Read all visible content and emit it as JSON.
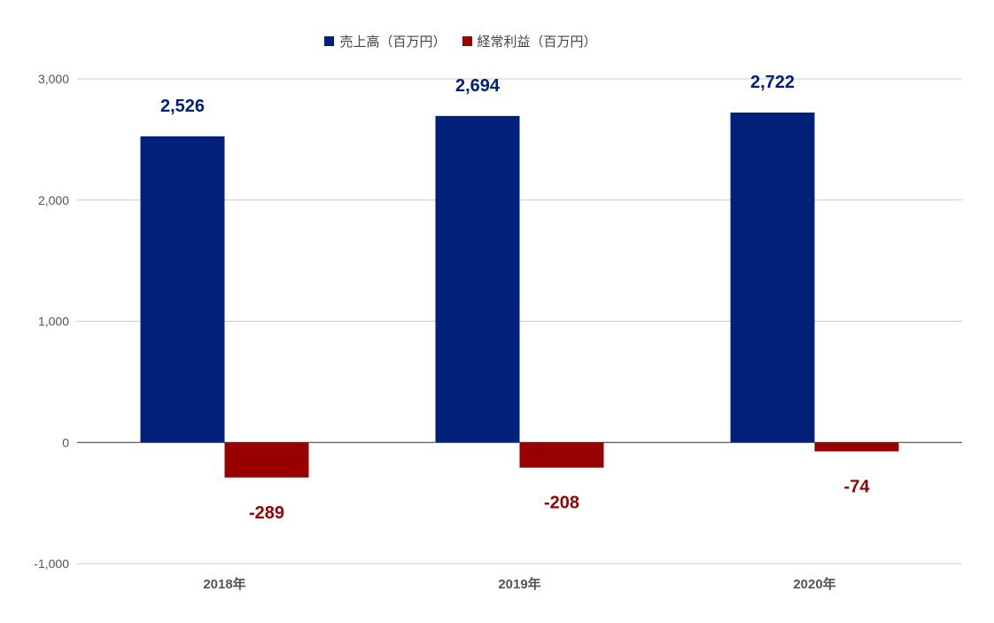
{
  "chart_data": {
    "type": "bar",
    "categories": [
      "2018年",
      "2019年",
      "2020年"
    ],
    "series": [
      {
        "name": "売上高（百万円）",
        "values": [
          2526,
          2694,
          2722
        ],
        "labels": [
          "2,526",
          "2,694",
          "2,722"
        ],
        "color": "#002079"
      },
      {
        "name": "経常利益（百万円）",
        "values": [
          -289,
          -208,
          -74
        ],
        "labels": [
          "-289",
          "-208",
          "-74"
        ],
        "color": "#990000"
      }
    ],
    "yticks": [
      3000,
      2000,
      1000,
      0,
      -1000
    ],
    "ytick_labels": [
      "3,000",
      "2,000",
      "1,000",
      "0",
      "-1,000"
    ],
    "ylim": [
      -1000,
      3000
    ],
    "grid": true,
    "legend_position": "top"
  }
}
